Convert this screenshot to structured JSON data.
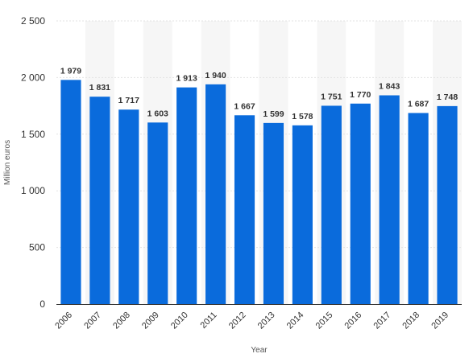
{
  "chart_data": {
    "type": "bar",
    "title": "",
    "xlabel": "Year",
    "ylabel": "Million euros",
    "categories": [
      "2006",
      "2007",
      "2008",
      "2009",
      "2010",
      "2011",
      "2012",
      "2013",
      "2014",
      "2015",
      "2016",
      "2017",
      "2018",
      "2019"
    ],
    "values": [
      1979,
      1831,
      1717,
      1603,
      1913,
      1940,
      1667,
      1599,
      1578,
      1751,
      1770,
      1843,
      1687,
      1748
    ],
    "data_labels": [
      "1 979",
      "1 831",
      "1 717",
      "1 603",
      "1 913",
      "1 940",
      "1 667",
      "1 599",
      "1 578",
      "1 751",
      "1 770",
      "1 843",
      "1 687",
      "1 748"
    ],
    "ylim": [
      0,
      2500
    ],
    "yticks": [
      0,
      500,
      1000,
      1500,
      2000,
      2500
    ],
    "ytick_labels": [
      "0",
      "500",
      "1 000",
      "1 500",
      "2 000",
      "2 500"
    ],
    "grid": true,
    "bar_color": "#0a6bdc",
    "band_color": "#f6f6f6",
    "grid_color": "#e3e3e3"
  }
}
